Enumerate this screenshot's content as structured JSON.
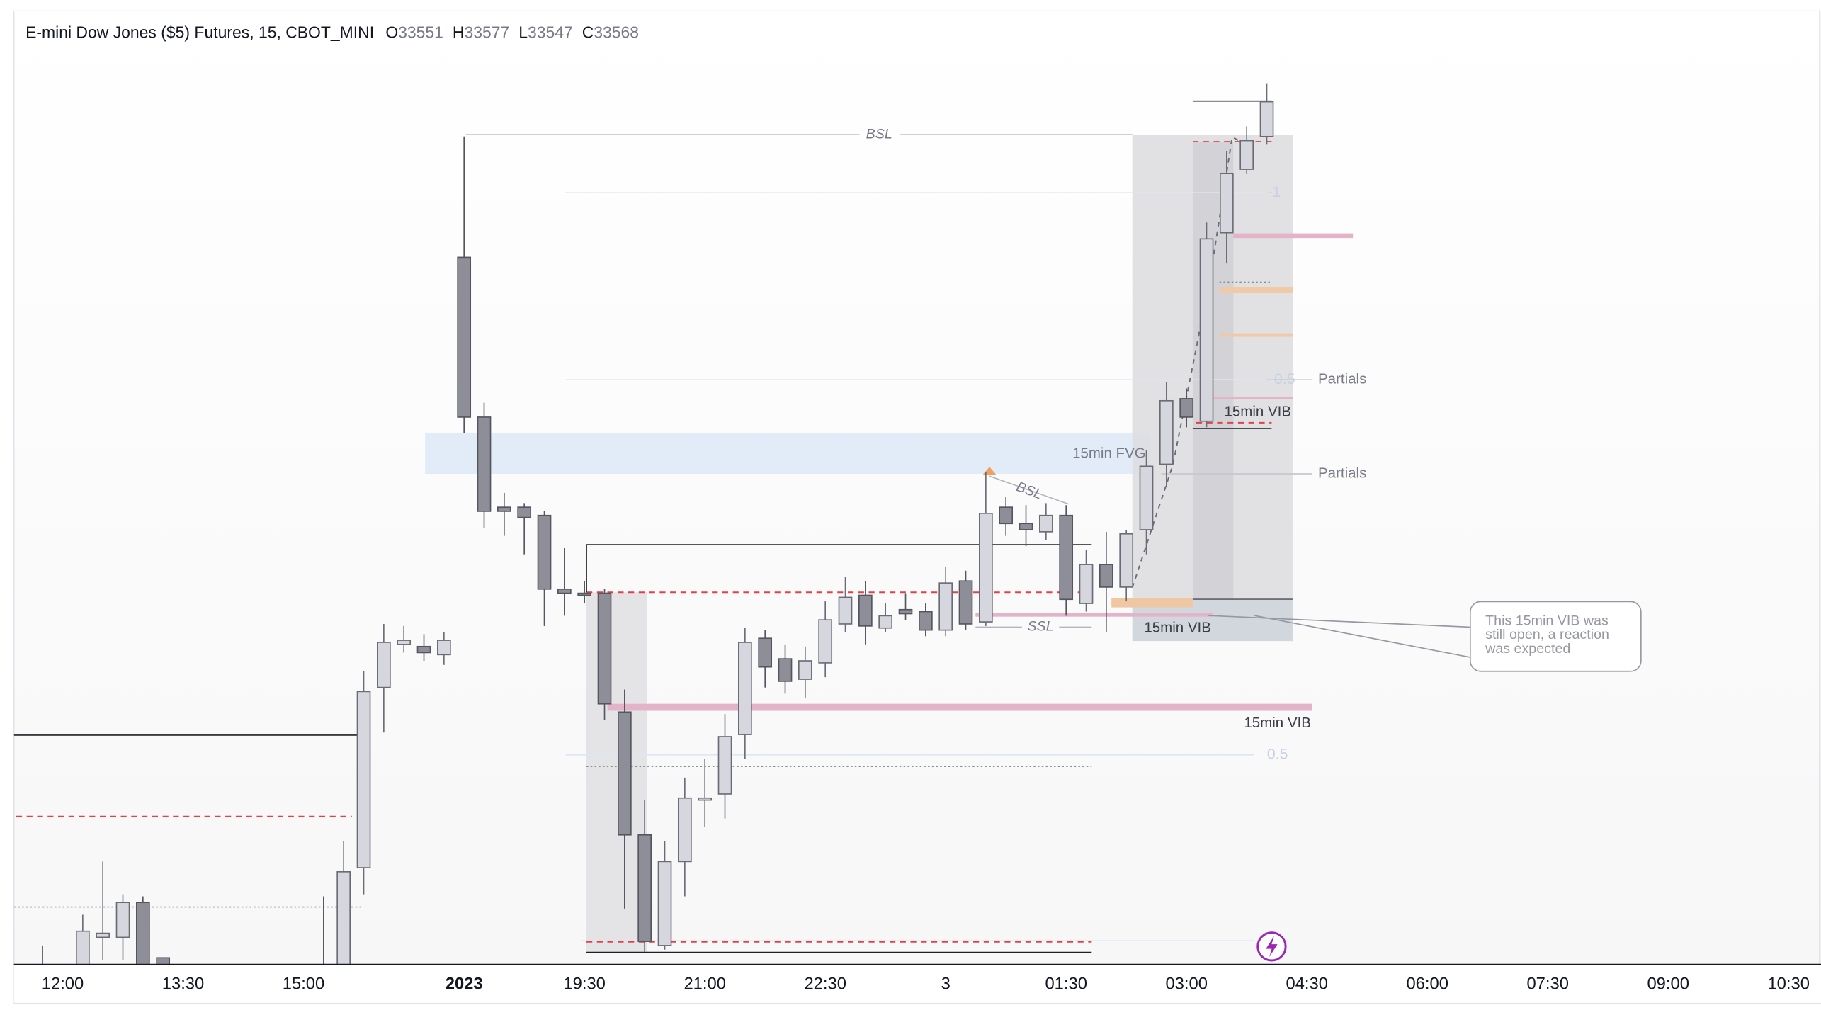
{
  "chart_data": {
    "type": "candlestick",
    "title": "E-mini Dow Jones ($5) Futures, 15, CBOT_MINI",
    "ohlc_labels": [
      "O",
      "H",
      "L",
      "C"
    ],
    "categories": [
      null,
      "12:00",
      null,
      null,
      null,
      null,
      null,
      "13:30",
      null,
      null,
      null,
      null,
      null,
      "15:00",
      null,
      null,
      null,
      null,
      null,
      null,
      null,
      "2023",
      null,
      null,
      null,
      null,
      null,
      "19:30",
      null,
      null,
      null,
      null,
      null,
      "21:00",
      null,
      null,
      null,
      null,
      null,
      "22:30",
      null,
      null,
      null,
      null,
      null,
      "3",
      null,
      null,
      null,
      null,
      null,
      "01:30",
      null,
      null,
      null,
      null,
      null,
      "03:00",
      null,
      null,
      null,
      null,
      null,
      "04:30",
      null,
      null,
      null,
      null,
      null,
      "06:00",
      null,
      null,
      null,
      null,
      null,
      "07:30",
      null,
      null,
      null,
      null,
      null,
      "09:00",
      null,
      null,
      null,
      null,
      null,
      "10:30",
      null
    ],
    "open": [
      33139,
      null,
      33142,
      33160,
      33160,
      33177,
      33150,
      null,
      null,
      null,
      null,
      null,
      null,
      null,
      33143,
      33142,
      33194,
      33282,
      33303,
      33302,
      33298,
      33492,
      33414,
      33370,
      33370,
      33366,
      33330,
      33328,
      33328,
      33270,
      33210,
      33156,
      33197,
      33227,
      33230,
      33259,
      33306,
      33296,
      33286,
      33294,
      33313,
      33327,
      33311,
      33320,
      33319,
      33310,
      33334,
      33314,
      33370,
      33362,
      33358,
      33366,
      33323,
      33342,
      33331,
      33359,
      33391,
      33423,
      33412,
      33504,
      33535,
      33551,
      null,
      null,
      null,
      null,
      null,
      null,
      null,
      null,
      null,
      null,
      null,
      null,
      null,
      null,
      null,
      null,
      null,
      null,
      null,
      null,
      null,
      null,
      null,
      null,
      null,
      null,
      null
    ],
    "high": [
      33156,
      null,
      33171,
      33197,
      33181,
      33180,
      33150,
      null,
      null,
      null,
      null,
      null,
      null,
      null,
      33180,
      33207,
      33290,
      33313,
      33312,
      33308,
      33309,
      33551,
      33421,
      33377,
      33372,
      33368,
      33350,
      33334,
      33330,
      33281,
      33227,
      33207,
      33238,
      33247,
      33269,
      33311,
      33310,
      33303,
      33302,
      33324,
      33336,
      33334,
      33323,
      33328,
      33323,
      33341,
      33339,
      33387,
      33375,
      33371,
      33372,
      33371,
      33349,
      33358,
      33359,
      33398,
      33431,
      33428,
      33509,
      33544,
      33556,
      33577,
      null,
      null,
      null,
      null,
      null,
      null,
      null,
      null,
      null,
      null,
      null,
      null,
      null,
      null,
      null,
      null,
      null,
      null,
      null,
      null,
      null,
      null,
      null,
      null,
      null,
      null,
      null
    ],
    "low": [
      33133,
      null,
      33136,
      33149,
      33149,
      33136,
      33145,
      null,
      null,
      null,
      null,
      null,
      null,
      null,
      33133,
      33136,
      33181,
      33260,
      33299,
      33295,
      33293,
      33406,
      33360,
      33356,
      33347,
      33312,
      33317,
      33323,
      33266,
      33174,
      33153,
      33154,
      33180,
      33214,
      33218,
      33247,
      33282,
      33279,
      33277,
      33287,
      33309,
      33303,
      33309,
      33315,
      33307,
      33307,
      33310,
      33312,
      33356,
      33351,
      33354,
      33317,
      33319,
      33309,
      33324,
      33347,
      33380,
      33409,
      33409,
      33489,
      33533,
      33547,
      null,
      null,
      null,
      null,
      null,
      null,
      null,
      null,
      null,
      null,
      null,
      null,
      null,
      null,
      null,
      null,
      null,
      null,
      null,
      null,
      null,
      null,
      null,
      null,
      null,
      null,
      null
    ],
    "close": [
      33143,
      null,
      33163,
      33162,
      33177,
      33142,
      33146,
      null,
      null,
      null,
      null,
      null,
      null,
      null,
      33139,
      33192,
      33280,
      33304,
      33305,
      33299,
      33305,
      33414,
      33368,
      33368,
      33365,
      33330,
      33328,
      33327,
      33274,
      33210,
      33158,
      33197,
      33228,
      33228,
      33258,
      33304,
      33292,
      33285,
      33295,
      33315,
      33326,
      33312,
      33317,
      33318,
      33310,
      33333,
      33313,
      33367,
      33362,
      33359,
      33366,
      33325,
      33342,
      33331,
      33357,
      33390,
      33422,
      33414,
      33501,
      33533,
      33549,
      33568,
      null,
      null,
      null,
      null,
      null,
      null,
      null,
      null,
      null,
      null,
      null,
      null,
      null,
      null,
      null,
      null,
      null,
      null,
      null,
      null,
      null,
      null,
      null,
      null,
      null,
      null,
      null
    ],
    "up_color": "#d5d6de",
    "down_color": "#8e8e98",
    "ylim": [
      33147,
      33612
    ],
    "annotations": {
      "bsl_top": "BSL",
      "bsl_mid": "BSL",
      "ssl": "SSL",
      "fvg": "15min FVG",
      "vib_upper": "15min VIB",
      "vib_box": "15min VIB",
      "vib_lower": "15min VIB",
      "partials_upper": "Partials",
      "partials_lower": "Partials",
      "fib_minus_1": "-1",
      "fib_minus_half": "-0.5",
      "fib_half": "0.5",
      "callout": [
        "This 15min VIB was",
        "still open, a reaction",
        "was expected"
      ]
    }
  }
}
